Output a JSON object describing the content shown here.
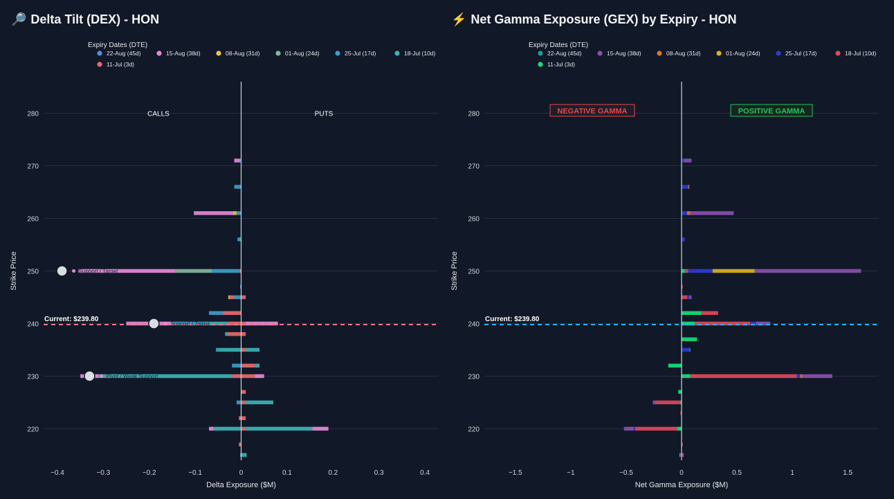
{
  "colors": {
    "bg": "#111827",
    "grid": "#263043",
    "zero": "#cbd5e1",
    "axis_text": "#d1d5db"
  },
  "left": {
    "title": "Delta Tilt (DEX) - HON",
    "icon": "magnifier-icon",
    "legend_title": "Expiry Dates (DTE)",
    "legend": [
      {
        "label": "22-Aug (45d)",
        "color": "#4f8fdc"
      },
      {
        "label": "15-Aug (38d)",
        "color": "#e58ad9"
      },
      {
        "label": "08-Aug (31d)",
        "color": "#f0c24a"
      },
      {
        "label": "01-Aug (24d)",
        "color": "#7fb79b"
      },
      {
        "label": "25-Jul (17d)",
        "color": "#3aa0c9"
      },
      {
        "label": "18-Jul (10d)",
        "color": "#3bb3b3"
      },
      {
        "label": "11-Jul (3d)",
        "color": "#e76b6b"
      }
    ],
    "label_calls": "CALLS",
    "label_puts": "PUTS",
    "current_label": "Current: $239.80",
    "annotations": [
      {
        "strike": 250,
        "x": -0.39,
        "text": "Support / Target"
      },
      {
        "strike": 240,
        "x": -0.19,
        "text": "Support / Target"
      },
      {
        "strike": 230,
        "x": -0.33,
        "text": "Pivot / Weak Support"
      }
    ]
  },
  "right": {
    "title": "Net Gamma Exposure (GEX) by Expiry - HON",
    "icon": "lightning-icon",
    "legend_title": "Expiry Dates (DTE)",
    "legend": [
      {
        "label": "22-Aug (45d)",
        "color": "#1f9e89"
      },
      {
        "label": "15-Aug (38d)",
        "color": "#8b4fb0"
      },
      {
        "label": "08-Aug (31d)",
        "color": "#d97a1e"
      },
      {
        "label": "01-Aug (24d)",
        "color": "#d9b21e"
      },
      {
        "label": "25-Jul (17d)",
        "color": "#2d3bd6"
      },
      {
        "label": "18-Jul (10d)",
        "color": "#e0485a"
      },
      {
        "label": "11-Jul (3d)",
        "color": "#14e07a"
      }
    ],
    "label_negative": "NEGATIVE GAMMA",
    "label_positive": "POSITIVE GAMMA",
    "current_label": "Current: $239.80"
  },
  "chart_data": [
    {
      "type": "bar",
      "orientation": "horizontal",
      "stacked": true,
      "title": "Delta Tilt (DEX) - HON",
      "xlabel": "Delta Exposure ($M)",
      "ylabel": "Strike Price",
      "xlim": [
        -0.43,
        0.43
      ],
      "ylim": [
        214,
        286
      ],
      "xticks": [
        -0.4,
        -0.3,
        -0.2,
        -0.1,
        0,
        0.1,
        0.2,
        0.3,
        0.4
      ],
      "yticks": [
        220,
        230,
        240,
        250,
        260,
        270,
        280
      ],
      "current_price": 239.8,
      "bars": [
        {
          "strike": 271,
          "segments": [
            {
              "s": "25-Jul (17d)",
              "v": -0.003
            },
            {
              "s": "15-Aug (38d)",
              "v": -0.012
            }
          ]
        },
        {
          "strike": 266,
          "segments": [
            {
              "s": "25-Jul (17d)",
              "v": -0.015
            }
          ]
        },
        {
          "strike": 261,
          "segments": [
            {
              "s": "25-Jul (17d)",
              "v": -0.01
            },
            {
              "s": "08-Aug (31d)",
              "v": -0.008
            },
            {
              "s": "15-Aug (38d)",
              "v": -0.085
            }
          ]
        },
        {
          "strike": 256,
          "segments": [
            {
              "s": "25-Jul (17d)",
              "v": -0.008
            }
          ]
        },
        {
          "strike": 250,
          "segments": [
            {
              "s": "11-Jul (3d)",
              "v": -0.004
            },
            {
              "s": "25-Jul (17d)",
              "v": -0.06
            },
            {
              "s": "01-Aug (24d)",
              "v": -0.08
            },
            {
              "s": "15-Aug (38d)",
              "v": -0.21
            }
          ]
        },
        {
          "strike": 247,
          "segments": [
            {
              "s": "25-Jul (17d)",
              "v": -0.002
            }
          ]
        },
        {
          "strike": 245,
          "segments": [
            {
              "s": "25-Jul (17d)",
              "v": -0.015
            },
            {
              "s": "11-Jul (3d)",
              "v": -0.01
            },
            {
              "s": "08-Aug (31d)",
              "v": -0.003
            },
            {
              "s": "11-Jul (3d)",
              "v": 0.01
            }
          ]
        },
        {
          "strike": 242,
          "segments": [
            {
              "s": "11-Jul (3d)",
              "v": -0.04
            },
            {
              "s": "25-Jul (17d)",
              "v": -0.03
            }
          ]
        },
        {
          "strike": 240,
          "segments": [
            {
              "s": "11-Jul (3d)",
              "v": -0.03
            },
            {
              "s": "18-Jul (10d)",
              "v": -0.05
            },
            {
              "s": "25-Jul (17d)",
              "v": -0.07
            },
            {
              "s": "15-Aug (38d)",
              "v": -0.1
            },
            {
              "s": "11-Jul (3d)",
              "v": 0.01
            },
            {
              "s": "15-Aug (38d)",
              "v": 0.07
            }
          ]
        },
        {
          "strike": 238,
          "segments": [
            {
              "s": "11-Jul (3d)",
              "v": -0.03
            },
            {
              "s": "18-Jul (10d)",
              "v": -0.005
            },
            {
              "s": "11-Jul (3d)",
              "v": 0.01
            }
          ]
        },
        {
          "strike": 235,
          "segments": [
            {
              "s": "18-Jul (10d)",
              "v": -0.05
            },
            {
              "s": "25-Jul (17d)",
              "v": -0.005
            },
            {
              "s": "11-Jul (3d)",
              "v": 0.01
            },
            {
              "s": "18-Jul (10d)",
              "v": 0.03
            }
          ]
        },
        {
          "strike": 232,
          "segments": [
            {
              "s": "25-Jul (17d)",
              "v": -0.02
            },
            {
              "s": "11-Jul (3d)",
              "v": 0.03
            },
            {
              "s": "18-Jul (10d)",
              "v": 0.01
            }
          ]
        },
        {
          "strike": 230,
          "segments": [
            {
              "s": "11-Jul (3d)",
              "v": -0.02
            },
            {
              "s": "18-Jul (10d)",
              "v": -0.29
            },
            {
              "s": "15-Aug (38d)",
              "v": -0.04
            },
            {
              "s": "11-Jul (3d)",
              "v": 0.03
            },
            {
              "s": "15-Aug (38d)",
              "v": 0.02
            }
          ]
        },
        {
          "strike": 227,
          "segments": [
            {
              "s": "11-Jul (3d)",
              "v": 0.01
            }
          ]
        },
        {
          "strike": 225,
          "segments": [
            {
              "s": "25-Jul (17d)",
              "v": -0.01
            },
            {
              "s": "11-Jul (3d)",
              "v": 0.01
            },
            {
              "s": "18-Jul (10d)",
              "v": 0.06
            }
          ]
        },
        {
          "strike": 222,
          "segments": [
            {
              "s": "11-Jul (3d)",
              "v": -0.005
            },
            {
              "s": "11-Jul (3d)",
              "v": 0.01
            }
          ]
        },
        {
          "strike": 220,
          "segments": [
            {
              "s": "18-Jul (10d)",
              "v": -0.06
            },
            {
              "s": "15-Aug (38d)",
              "v": -0.01
            },
            {
              "s": "11-Jul (3d)",
              "v": 0.01
            },
            {
              "s": "18-Jul (10d)",
              "v": 0.145
            },
            {
              "s": "15-Aug (38d)",
              "v": 0.035
            }
          ]
        },
        {
          "strike": 217,
          "segments": [
            {
              "s": "11-Jul (3d)",
              "v": -0.005
            }
          ]
        },
        {
          "strike": 215,
          "segments": [
            {
              "s": "25-Jul (17d)",
              "v": -0.002
            },
            {
              "s": "18-Jul (10d)",
              "v": 0.012
            }
          ]
        }
      ]
    },
    {
      "type": "bar",
      "orientation": "horizontal",
      "stacked": true,
      "title": "Net Gamma Exposure (GEX) by Expiry - HON",
      "xlabel": "Net Gamma Exposure ($M)",
      "ylabel": "Strike Price",
      "xlim": [
        -1.78,
        1.78
      ],
      "ylim": [
        214,
        286
      ],
      "xticks": [
        -1.5,
        -1,
        -0.5,
        0,
        0.5,
        1,
        1.5
      ],
      "yticks": [
        220,
        230,
        240,
        250,
        260,
        270,
        280
      ],
      "current_price": 239.8,
      "bars": [
        {
          "strike": 271,
          "segments": [
            {
              "s": "25-Jul (17d)",
              "v": 0.02
            },
            {
              "s": "15-Aug (38d)",
              "v": 0.07
            }
          ]
        },
        {
          "strike": 266,
          "segments": [
            {
              "s": "25-Jul (17d)",
              "v": 0.06
            },
            {
              "s": "08-Aug (31d)",
              "v": 0.01
            }
          ]
        },
        {
          "strike": 261,
          "segments": [
            {
              "s": "25-Jul (17d)",
              "v": 0.05
            },
            {
              "s": "08-Aug (31d)",
              "v": 0.03
            },
            {
              "s": "15-Aug (38d)",
              "v": 0.39
            }
          ]
        },
        {
          "strike": 256,
          "segments": [
            {
              "s": "25-Jul (17d)",
              "v": 0.03
            }
          ]
        },
        {
          "strike": 250,
          "segments": [
            {
              "s": "11-Jul (3d)",
              "v": 0.03
            },
            {
              "s": "18-Jul (10d)",
              "v": 0.03
            },
            {
              "s": "25-Jul (17d)",
              "v": 0.22
            },
            {
              "s": "01-Aug (24d)",
              "v": 0.38
            },
            {
              "s": "15-Aug (38d)",
              "v": 0.96
            }
          ]
        },
        {
          "strike": 247,
          "segments": [
            {
              "s": "18-Jul (10d)",
              "v": 0.01
            }
          ]
        },
        {
          "strike": 245,
          "segments": [
            {
              "s": "18-Jul (10d)",
              "v": 0.05
            },
            {
              "s": "25-Jul (17d)",
              "v": 0.02
            },
            {
              "s": "15-Aug (38d)",
              "v": 0.02
            }
          ]
        },
        {
          "strike": 242,
          "segments": [
            {
              "s": "11-Jul (3d)",
              "v": 0.18
            },
            {
              "s": "18-Jul (10d)",
              "v": 0.15
            }
          ]
        },
        {
          "strike": 240,
          "segments": [
            {
              "s": "11-Jul (3d)",
              "v": 0.12
            },
            {
              "s": "18-Jul (10d)",
              "v": 0.5
            },
            {
              "s": "25-Jul (17d)",
              "v": 0.05
            },
            {
              "s": "15-Aug (38d)",
              "v": 0.13
            }
          ]
        },
        {
          "strike": 237,
          "segments": [
            {
              "s": "11-Jul (3d)",
              "v": 0.14
            }
          ]
        },
        {
          "strike": 235,
          "segments": [
            {
              "s": "25-Jul (17d)",
              "v": 0.07
            },
            {
              "s": "22-Aug (45d)",
              "v": 0.01
            }
          ]
        },
        {
          "strike": 232,
          "segments": [
            {
              "s": "11-Jul (3d)",
              "v": -0.12
            }
          ]
        },
        {
          "strike": 230,
          "segments": [
            {
              "s": "11-Jul (3d)",
              "v": 0.08
            },
            {
              "s": "18-Jul (10d)",
              "v": 0.96
            },
            {
              "s": "25-Jul (17d)",
              "v": 0.03
            },
            {
              "s": "08-Aug (31d)",
              "v": 0.02
            },
            {
              "s": "15-Aug (38d)",
              "v": 0.27
            }
          ]
        },
        {
          "strike": 227,
          "segments": [
            {
              "s": "11-Jul (3d)",
              "v": -0.03
            }
          ]
        },
        {
          "strike": 225,
          "segments": [
            {
              "s": "11-Jul (3d)",
              "v": -0.01
            },
            {
              "s": "18-Jul (10d)",
              "v": -0.23
            },
            {
              "s": "15-Aug (38d)",
              "v": -0.02
            }
          ]
        },
        {
          "strike": 223,
          "segments": [
            {
              "s": "18-Jul (10d)",
              "v": -0.01
            }
          ]
        },
        {
          "strike": 220,
          "segments": [
            {
              "s": "11-Jul (3d)",
              "v": -0.04
            },
            {
              "s": "18-Jul (10d)",
              "v": -0.38
            },
            {
              "s": "25-Jul (17d)",
              "v": -0.01
            },
            {
              "s": "15-Aug (38d)",
              "v": -0.09
            }
          ]
        },
        {
          "strike": 217,
          "segments": [
            {
              "s": "18-Jul (10d)",
              "v": 0.01
            }
          ]
        },
        {
          "strike": 215,
          "segments": [
            {
              "s": "25-Jul (17d)",
              "v": -0.01
            },
            {
              "s": "08-Aug (31d)",
              "v": -0.01
            },
            {
              "s": "15-Aug (38d)",
              "v": 0.02
            }
          ]
        }
      ]
    }
  ]
}
